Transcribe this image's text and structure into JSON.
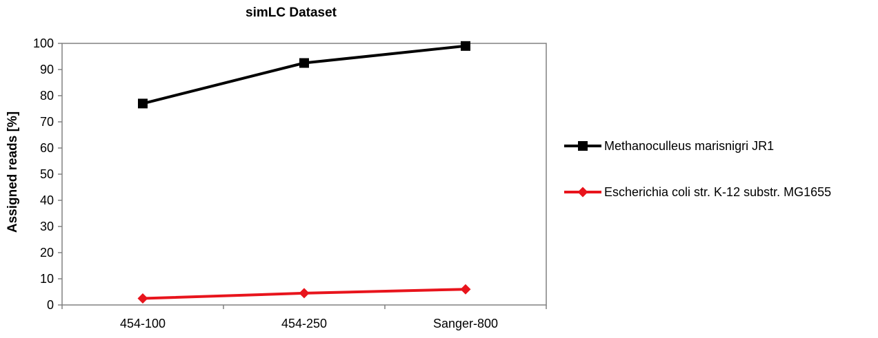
{
  "chart_data": {
    "type": "line",
    "title": "simLC Dataset",
    "xlabel": "",
    "ylabel": "Assigned reads [%]",
    "categories": [
      "454-100",
      "454-250",
      "Sanger-800"
    ],
    "ylim": [
      0,
      100
    ],
    "yticks": [
      0,
      10,
      20,
      30,
      40,
      50,
      60,
      70,
      80,
      90,
      100
    ],
    "grid": false,
    "legend_position": "right",
    "series": [
      {
        "name": "Methanoculleus marisnigri JR1",
        "values": [
          77,
          92.5,
          99
        ],
        "color": "#000000",
        "marker": "square"
      },
      {
        "name": "Escherichia coli str. K-12 substr. MG1655",
        "values": [
          2.5,
          4.5,
          6
        ],
        "color": "#e8141c",
        "marker": "diamond"
      }
    ]
  }
}
